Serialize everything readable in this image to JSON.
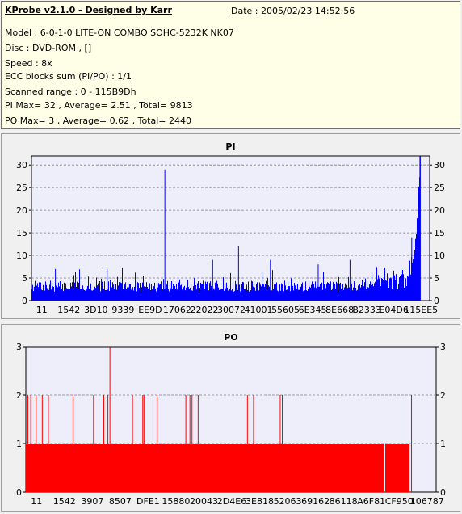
{
  "header": {
    "title": "KProbe v2.1.0 - Designed by Karr",
    "date": "Date : 2005/02/23 14:52:56",
    "lines": [
      "Model : 6-0-1-0 LITE-ON COMBO SOHC-5232K NK07",
      "Disc : DVD-ROM ,  []",
      "Speed : 8x",
      "ECC blocks sum (PI/PO) : 1/1",
      "Scanned range : 0 - 115B9Dh",
      "PI Max= 32 , Average= 2.51 , Total= 9813",
      "PO Max= 3 , Average= 0.62 , Total= 2440"
    ]
  },
  "colors": {
    "pi": "#0000ff",
    "po": "#ff0000",
    "plot_bg": "#eeeefa",
    "frame": "#ffffe8"
  },
  "chart_data": [
    {
      "type": "bar",
      "title": "PI",
      "ylim": [
        0,
        32
      ],
      "yticks": [
        0,
        5,
        10,
        15,
        20,
        25,
        30
      ],
      "grid": true,
      "xtick_labels": [
        "11",
        "1542",
        "3D10",
        "9339",
        "EE9D",
        "17062",
        "22022",
        "30072",
        "41001",
        "55605",
        "6E345",
        "8E668",
        "B2333",
        "E04D6",
        "115EE5"
      ],
      "x_range": [
        0,
        1137565
      ],
      "spikes": [
        {
          "x": 0.335,
          "y": 29
        },
        {
          "x": 0.52,
          "y": 12
        },
        {
          "x": 0.455,
          "y": 9
        },
        {
          "x": 0.06,
          "y": 7
        },
        {
          "x": 0.19,
          "y": 7
        },
        {
          "x": 0.6,
          "y": 9
        },
        {
          "x": 0.72,
          "y": 8
        },
        {
          "x": 0.8,
          "y": 9
        },
        {
          "x": 0.955,
          "y": 14
        }
      ],
      "tail": {
        "end_x": 0.976,
        "end_y": 32
      }
    },
    {
      "type": "bar",
      "title": "PO",
      "ylim": [
        0,
        3
      ],
      "yticks": [
        0,
        1,
        2,
        3
      ],
      "grid": true,
      "xtick_labels": [
        "11",
        "1542",
        "3907",
        "8507",
        "DFE1",
        "15880",
        "20043",
        "2D4E6",
        "3E818",
        "52063",
        "69162",
        "86118",
        "A6F81",
        "CF950",
        "106787"
      ],
      "x_range": [
        0,
        1073031
      ],
      "base_level": 1,
      "gap_x": 0.872,
      "end_x": 0.935,
      "spikes": [
        {
          "x": 0.005,
          "y": 2
        },
        {
          "x": 0.012,
          "y": 2
        },
        {
          "x": 0.025,
          "y": 2
        },
        {
          "x": 0.04,
          "y": 2
        },
        {
          "x": 0.055,
          "y": 2
        },
        {
          "x": 0.115,
          "y": 2
        },
        {
          "x": 0.165,
          "y": 2
        },
        {
          "x": 0.19,
          "y": 2
        },
        {
          "x": 0.2,
          "y": 2
        },
        {
          "x": 0.205,
          "y": 3
        },
        {
          "x": 0.26,
          "y": 2
        },
        {
          "x": 0.285,
          "y": 2
        },
        {
          "x": 0.288,
          "y": 2
        },
        {
          "x": 0.31,
          "y": 2
        },
        {
          "x": 0.32,
          "y": 2
        },
        {
          "x": 0.39,
          "y": 2
        },
        {
          "x": 0.4,
          "y": 2
        },
        {
          "x": 0.405,
          "y": 2
        },
        {
          "x": 0.42,
          "y": 2
        },
        {
          "x": 0.54,
          "y": 2
        },
        {
          "x": 0.555,
          "y": 2
        },
        {
          "x": 0.62,
          "y": 2
        },
        {
          "x": 0.625,
          "y": 2
        },
        {
          "x": 0.94,
          "y": 2
        }
      ]
    }
  ]
}
